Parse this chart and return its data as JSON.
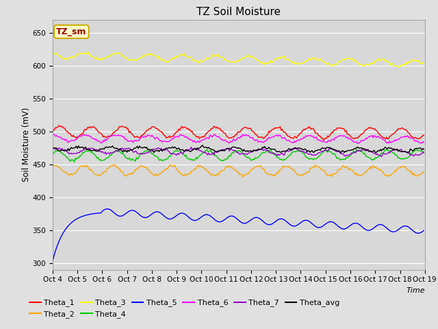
{
  "title": "TZ Soil Moisture",
  "ylabel": "Soil Moisture (mV)",
  "xlabel": "Time",
  "xlim": [
    0,
    360
  ],
  "ylim": [
    290,
    670
  ],
  "yticks": [
    300,
    350,
    400,
    450,
    500,
    550,
    600,
    650
  ],
  "background_color": "#e0e0e0",
  "plot_bg_color": "#d8d8d8",
  "grid_color": "#ffffff",
  "n_points": 360,
  "series_order": [
    "Theta_1",
    "Theta_2",
    "Theta_3",
    "Theta_4",
    "Theta_5",
    "Theta_6",
    "Theta_7",
    "Theta_avg"
  ],
  "series": {
    "Theta_1": {
      "color": "#ff0000",
      "base": 500,
      "amplitude": 8,
      "trend": -0.008,
      "freq": 30,
      "phase": 0.0
    },
    "Theta_2": {
      "color": "#ffa500",
      "base": 441,
      "amplitude": 7,
      "trend": -0.003,
      "freq": 28,
      "phase": 1.0
    },
    "Theta_3": {
      "color": "#ffff00",
      "base": 616,
      "amplitude": 5,
      "trend": -0.036,
      "freq": 32,
      "phase": 2.0
    },
    "Theta_4": {
      "color": "#00cc00",
      "base": 463,
      "amplitude": 7,
      "trend": 0.005,
      "freq": 29,
      "phase": 0.5
    },
    "Theta_5": {
      "color": "#0000ff",
      "base": 303,
      "amplitude": 5,
      "trend": 0.0,
      "freq": 24,
      "phase": 0.2
    },
    "Theta_6": {
      "color": "#ff00ff",
      "base": 490,
      "amplitude": 5,
      "trend": -0.005,
      "freq": 31,
      "phase": 1.5
    },
    "Theta_7": {
      "color": "#9900cc",
      "base": 471,
      "amplitude": 4,
      "trend": -0.008,
      "freq": 33,
      "phase": 0.8
    },
    "Theta_avg": {
      "color": "#000000",
      "base": 474,
      "amplitude": 3,
      "trend": -0.006,
      "freq": 30,
      "phase": 2.5
    }
  },
  "xtick_labels": [
    "Oct 4",
    "Oct 5",
    "Oct 6",
    "Oct 7",
    "Oct 8",
    "Oct 9",
    "Oct 10",
    "Oct 11",
    "Oct 12",
    "Oct 13",
    "Oct 14",
    "Oct 15",
    "Oct 16",
    "Oct 17",
    "Oct 18",
    "Oct 19"
  ],
  "xtick_positions": [
    0,
    24,
    48,
    72,
    96,
    120,
    144,
    168,
    192,
    216,
    240,
    264,
    288,
    312,
    336,
    360
  ],
  "legend_label_box": "TZ_sm",
  "legend_box_facecolor": "#ffffcc",
  "legend_box_edgecolor": "#ccaa00"
}
